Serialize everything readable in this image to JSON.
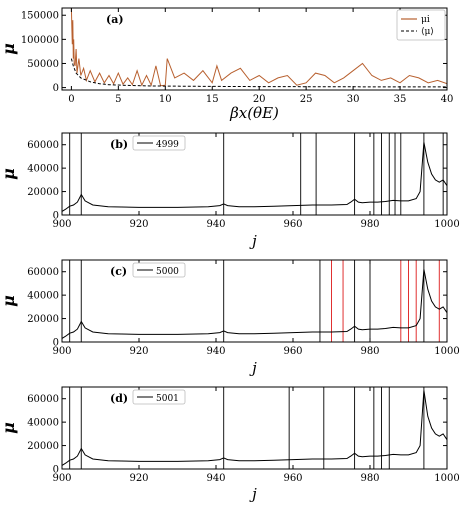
{
  "chart_data": [
    {
      "type": "line",
      "panel_label": "(a)",
      "xlabel": "βx(θE)",
      "ylabel": "μ",
      "xlim": [
        -1,
        40
      ],
      "ylim": [
        -5000,
        165000
      ],
      "xticks": [
        0,
        5,
        10,
        15,
        20,
        25,
        30,
        35,
        40
      ],
      "yticks": [
        0,
        50000,
        100000,
        150000
      ],
      "legend": {
        "placement": "top-right",
        "entries": [
          "μi",
          "⟨μ⟩"
        ]
      },
      "series": [
        {
          "name": "μi",
          "color": "#b8602f",
          "x": [
            0,
            0.05,
            0.1,
            0.15,
            0.2,
            0.25,
            0.3,
            0.4,
            0.5,
            0.6,
            0.8,
            1.0,
            1.3,
            1.6,
            2.0,
            2.5,
            3.0,
            3.5,
            4.0,
            4.5,
            5.0,
            5.5,
            6.0,
            6.5,
            7.0,
            7.5,
            8.0,
            8.5,
            9.0,
            9.5,
            10.0,
            10.2,
            11.0,
            12.0,
            13.0,
            14.0,
            15.0,
            15.5,
            16.0,
            17.0,
            18.0,
            19.0,
            20.0,
            21.0,
            22.0,
            23.0,
            24.0,
            25.0,
            26.0,
            27.0,
            28.0,
            29.0,
            30.0,
            31.0,
            32.0,
            33.0,
            34.0,
            35.0,
            36.0,
            37.0,
            38.0,
            39.0,
            40.0
          ],
          "values": [
            165000,
            120000,
            90000,
            140000,
            60000,
            100000,
            50000,
            45000,
            80000,
            30000,
            60000,
            25000,
            40000,
            15000,
            35000,
            12000,
            30000,
            10000,
            25000,
            8000,
            30000,
            7000,
            20000,
            6000,
            35000,
            5000,
            25000,
            5000,
            45000,
            4000,
            5000,
            60000,
            20000,
            30000,
            15000,
            35000,
            10000,
            45000,
            15000,
            30000,
            40000,
            15000,
            25000,
            10000,
            20000,
            25000,
            5000,
            10000,
            30000,
            25000,
            10000,
            20000,
            35000,
            50000,
            25000,
            15000,
            20000,
            10000,
            25000,
            20000,
            10000,
            15000,
            8000
          ]
        },
        {
          "name": "⟨μ⟩",
          "color": "#000000",
          "x": [
            0,
            0.2,
            0.5,
            1,
            2,
            3,
            4,
            6,
            8,
            10,
            15,
            20,
            25,
            30,
            35,
            40
          ],
          "values": [
            60000,
            45000,
            30000,
            20000,
            12000,
            8000,
            6000,
            4500,
            3500,
            3000,
            2500,
            2000,
            1800,
            1600,
            1500,
            1400
          ]
        }
      ]
    },
    {
      "type": "line",
      "panel_label": "(b)",
      "xlabel": "j",
      "ylabel": "μ",
      "xlim": [
        900,
        1000
      ],
      "ylim": [
        0,
        70000
      ],
      "xticks": [
        900,
        920,
        940,
        960,
        980,
        1000
      ],
      "yticks": [
        0,
        20000,
        40000,
        60000
      ],
      "legend": {
        "placement": "top-left",
        "entries": [
          "4999"
        ]
      },
      "vlines": {
        "black": [
          902,
          905,
          942,
          962,
          966,
          976,
          981,
          983,
          985,
          986.5,
          988,
          994,
          999
        ],
        "red": []
      },
      "series": [
        {
          "name": "4999",
          "x": [
            900,
            901,
            902,
            903,
            904,
            905,
            906,
            908,
            912,
            920,
            930,
            938,
            941,
            942,
            943,
            946,
            950,
            955,
            960,
            965,
            970,
            974,
            975,
            976,
            977,
            978,
            980,
            982,
            984,
            986,
            988,
            990,
            992,
            993,
            994,
            995,
            996,
            997,
            998,
            999,
            1000
          ],
          "values": [
            3000,
            5000,
            7500,
            8500,
            11000,
            17500,
            12000,
            8500,
            7000,
            6500,
            6500,
            7000,
            8000,
            9500,
            8000,
            7000,
            7000,
            7500,
            8000,
            8500,
            8500,
            9000,
            11000,
            13500,
            11000,
            10500,
            11000,
            11000,
            11500,
            12500,
            12000,
            12000,
            14000,
            20000,
            62000,
            45000,
            35000,
            30000,
            28000,
            30000,
            25000
          ]
        }
      ]
    },
    {
      "type": "line",
      "panel_label": "(c)",
      "xlabel": "j",
      "ylabel": "μ",
      "xlim": [
        900,
        1000
      ],
      "ylim": [
        0,
        70000
      ],
      "xticks": [
        900,
        920,
        940,
        960,
        980,
        1000
      ],
      "yticks": [
        0,
        20000,
        40000,
        60000
      ],
      "legend": {
        "placement": "top-left",
        "entries": [
          "5000"
        ]
      },
      "vlines": {
        "black": [
          902,
          905,
          942,
          967,
          976,
          980,
          994
        ],
        "red": [
          970,
          973,
          988,
          990,
          992,
          998
        ]
      },
      "series": [
        {
          "name": "5000",
          "x": [
            900,
            901,
            902,
            903,
            904,
            905,
            906,
            908,
            912,
            920,
            930,
            938,
            941,
            942,
            943,
            946,
            950,
            955,
            960,
            965,
            970,
            974,
            975,
            976,
            977,
            978,
            980,
            982,
            984,
            986,
            988,
            990,
            992,
            993,
            994,
            995,
            996,
            997,
            998,
            999,
            1000
          ],
          "values": [
            3000,
            5000,
            7500,
            8500,
            11000,
            17500,
            12000,
            8500,
            7000,
            6500,
            6500,
            7000,
            8000,
            9500,
            8000,
            7000,
            7000,
            7500,
            8000,
            8500,
            8500,
            9000,
            11000,
            13500,
            11000,
            10500,
            11000,
            11000,
            11500,
            12500,
            12000,
            12000,
            14000,
            20000,
            62000,
            45000,
            35000,
            30000,
            28000,
            30000,
            25000
          ]
        }
      ]
    },
    {
      "type": "line",
      "panel_label": "(d)",
      "xlabel": "j",
      "ylabel": "μ",
      "xlim": [
        900,
        1000
      ],
      "ylim": [
        0,
        70000
      ],
      "xticks": [
        900,
        920,
        940,
        960,
        980,
        1000
      ],
      "yticks": [
        0,
        20000,
        40000,
        60000
      ],
      "legend": {
        "placement": "top-left",
        "entries": [
          "5001"
        ]
      },
      "vlines": {
        "black": [
          902,
          905,
          942,
          959,
          968,
          976,
          981,
          983,
          985,
          994
        ],
        "red": []
      },
      "series": [
        {
          "name": "5001",
          "x": [
            900,
            901,
            902,
            903,
            904,
            905,
            906,
            908,
            912,
            920,
            930,
            938,
            941,
            942,
            943,
            946,
            950,
            955,
            960,
            965,
            970,
            974,
            975,
            976,
            977,
            978,
            980,
            982,
            984,
            986,
            988,
            990,
            992,
            993,
            994,
            995,
            996,
            997,
            998,
            999,
            1000
          ],
          "values": [
            3000,
            5000,
            7500,
            8500,
            11000,
            17500,
            12000,
            8500,
            7000,
            6500,
            6500,
            7000,
            8000,
            9500,
            8000,
            7000,
            7000,
            7500,
            8000,
            8500,
            8500,
            9000,
            11000,
            13500,
            11000,
            10500,
            11000,
            11000,
            11500,
            12500,
            12000,
            12000,
            14000,
            20000,
            67000,
            45000,
            35000,
            30000,
            28000,
            30000,
            25000
          ]
        }
      ]
    }
  ]
}
